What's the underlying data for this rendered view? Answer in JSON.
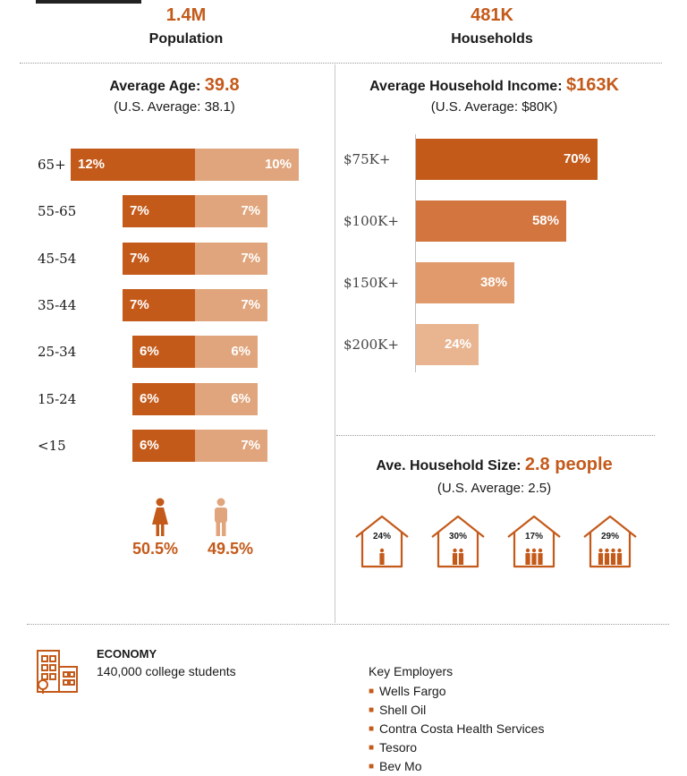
{
  "kpis": {
    "population": {
      "value": "1.4M",
      "label": "Population"
    },
    "households": {
      "value": "481K",
      "label": "Households"
    }
  },
  "age_section": {
    "title_prefix": "Average Age:",
    "title_value": "39.8",
    "subtitle": "(U.S. Average: 38.1)"
  },
  "income_section": {
    "title_prefix": "Average Household Income:",
    "title_value": "$163K",
    "subtitle": "(U.S. Average: $80K)"
  },
  "household_size": {
    "title_prefix": "Ave. Household Size:",
    "title_value": "2.8 people",
    "subtitle": "(U.S. Average: 2.5)",
    "houses": [
      {
        "pct": "24%",
        "people": 1
      },
      {
        "pct": "30%",
        "people": 2
      },
      {
        "pct": "17%",
        "people": 3
      },
      {
        "pct": "29%",
        "people": 4
      }
    ]
  },
  "gender": {
    "female_pct": "50.5%",
    "male_pct": "49.5%"
  },
  "colors": {
    "female": "#c45a1a",
    "male": "#e0a57c",
    "income": [
      "#c45a1a",
      "#d2753f",
      "#e09a6b",
      "#e8b590"
    ]
  },
  "chart_data": [
    {
      "type": "bar",
      "orientation": "horizontal-diverging",
      "title": "Average Age: 39.8",
      "categories": [
        "65+",
        "55-65",
        "45-54",
        "35-44",
        "25-34",
        "15-24",
        "<15"
      ],
      "series": [
        {
          "name": "Female",
          "values": [
            12,
            7,
            7,
            7,
            6,
            6,
            6
          ],
          "labels": [
            "12%",
            "7%",
            "7%",
            "7%",
            "6%",
            "6%",
            "6%"
          ]
        },
        {
          "name": "Male",
          "values": [
            10,
            7,
            7,
            7,
            6,
            6,
            7
          ],
          "labels": [
            "10%",
            "7%",
            "7%",
            "7%",
            "6%",
            "6%",
            "7%"
          ]
        }
      ],
      "unit": "%"
    },
    {
      "type": "bar",
      "orientation": "horizontal",
      "title": "Average Household Income: $163K",
      "categories": [
        "$75K+",
        "$100K+",
        "$150K+",
        "$200K+"
      ],
      "values": [
        70,
        58,
        38,
        24
      ],
      "labels": [
        "70%",
        "58%",
        "38%",
        "24%"
      ],
      "unit": "%"
    }
  ],
  "economy": {
    "title": "ECONOMY",
    "text": "140,000 college students",
    "key_employers_label": "Key Employers",
    "employers": [
      "Wells Fargo",
      "Shell Oil",
      "Contra Costa Health Services",
      "Tesoro",
      "Bev Mo"
    ]
  }
}
